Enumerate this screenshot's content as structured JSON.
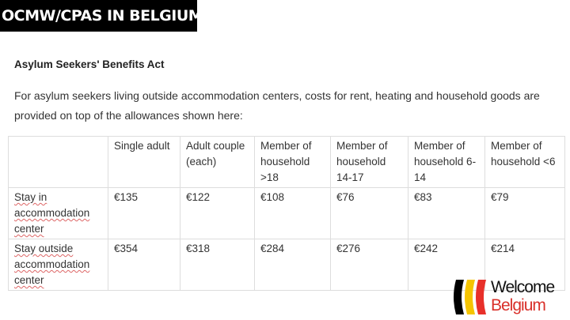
{
  "banner": "OCMW/CPAS IN BELGIUM",
  "title": "Asylum Seekers' Benefits Act",
  "intro": "For asylum seekers living outside accommodation centers, costs for rent, heating and household goods are provided on top of the allowances shown here:",
  "table": {
    "headers": [
      "",
      "Single adult",
      "Adult couple (each)",
      "Member of household >18",
      "Member of household 14-17",
      "Member of household 6-14",
      "Member of household <6"
    ],
    "rows": [
      {
        "label": "Stay in accommodation center",
        "values": [
          "€135",
          "€122",
          "€108",
          "€76",
          "€83",
          "€79"
        ]
      },
      {
        "label": "Stay outside accommodation center",
        "values": [
          "€354",
          "€318",
          "€284",
          "€276",
          "€242",
          "€214"
        ]
      }
    ]
  },
  "logo": {
    "line1": "Welcome",
    "line2": "Belgium",
    "colors": [
      "#000000",
      "#f5c400",
      "#e8302a"
    ]
  }
}
